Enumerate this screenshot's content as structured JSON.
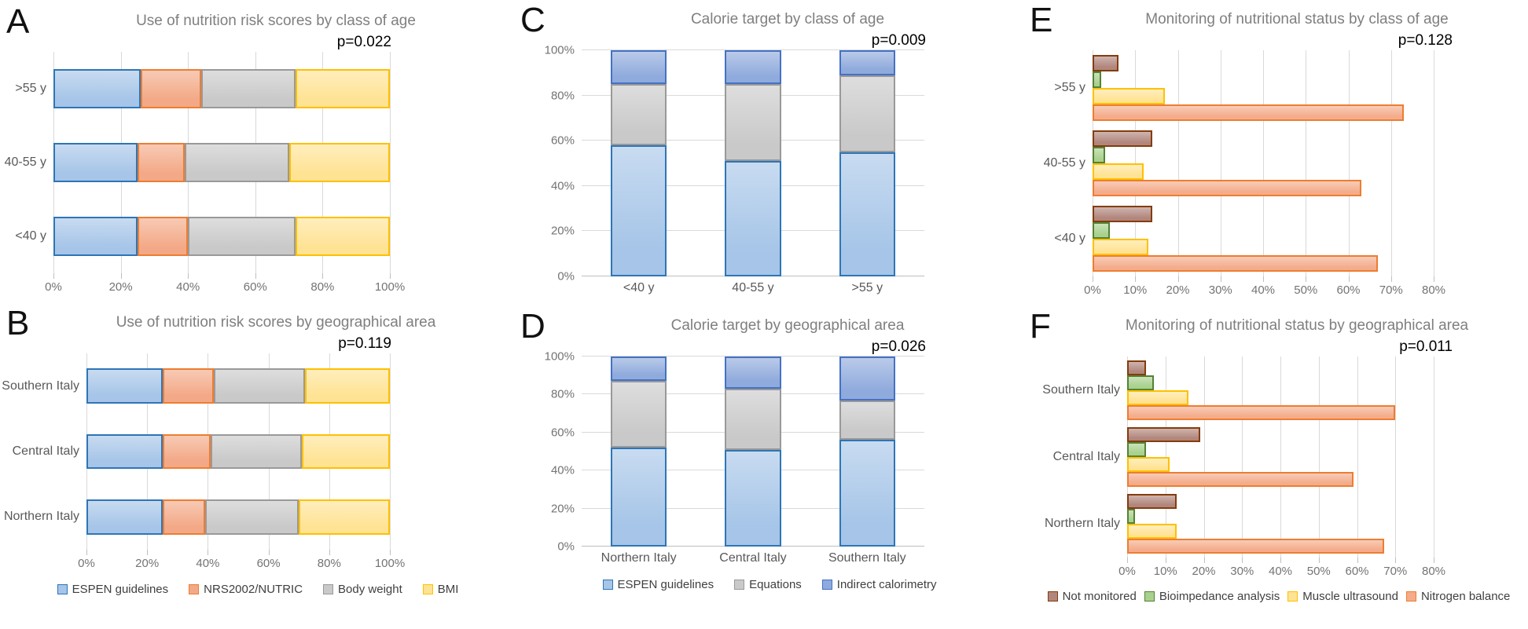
{
  "palette": {
    "espen_blue": {
      "fill": "#A6C5E8",
      "border": "#2E75B6"
    },
    "nrs_orange": {
      "fill": "#F3A987",
      "border": "#ED7D31"
    },
    "gray": {
      "fill": "#C9C9C9",
      "border": "#999999"
    },
    "bmi_yellow": {
      "fill": "#FFE394",
      "border": "#FFC000"
    },
    "calorimetry_blue": {
      "fill": "#8FAADC",
      "border": "#4472C4"
    },
    "brown": {
      "fill": "#B1867C",
      "border": "#843C0C"
    },
    "green": {
      "fill": "#A9D18E",
      "border": "#548235"
    },
    "nitrogen_orange": {
      "fill": "#F4AC8B",
      "border": "#ED7D31"
    },
    "gridline": "#D9D9D9"
  },
  "chart_data": [
    {
      "id": "A",
      "letter": "A",
      "type": "stacked-bar-h",
      "title": "Use of nutrition risk scores by class of age",
      "pvalue": "p=0.022",
      "categories": [
        ">55 y",
        "40-55 y",
        "<40 y"
      ],
      "series": [
        {
          "name": "ESPEN guidelines",
          "color": "espen_blue",
          "values": [
            26,
            25,
            25
          ]
        },
        {
          "name": "NRS2002/NUTRIC",
          "color": "nrs_orange",
          "values": [
            18,
            14,
            15
          ]
        },
        {
          "name": "Body weight",
          "color": "gray",
          "values": [
            28,
            31,
            32
          ]
        },
        {
          "name": "BMI",
          "color": "bmi_yellow",
          "values": [
            28,
            30,
            28
          ]
        }
      ],
      "x_ticks": [
        "0%",
        "20%",
        "40%",
        "60%",
        "80%",
        "100%"
      ],
      "xmax": 100,
      "legend": false
    },
    {
      "id": "B",
      "letter": "B",
      "type": "stacked-bar-h",
      "title": "Use of nutrition risk scores by geographical area",
      "pvalue": "p=0.119",
      "categories": [
        "Southern Italy",
        "Central Italy",
        "Northern Italy"
      ],
      "series": [
        {
          "name": "ESPEN guidelines",
          "color": "espen_blue",
          "values": [
            25,
            25,
            25
          ]
        },
        {
          "name": "NRS2002/NUTRIC",
          "color": "nrs_orange",
          "values": [
            17,
            16,
            14
          ]
        },
        {
          "name": "Body weight",
          "color": "gray",
          "values": [
            30,
            30,
            31
          ]
        },
        {
          "name": "BMI",
          "color": "bmi_yellow",
          "values": [
            28,
            29,
            30
          ]
        }
      ],
      "x_ticks": [
        "0%",
        "20%",
        "40%",
        "60%",
        "80%",
        "100%"
      ],
      "xmax": 100,
      "legend": true
    },
    {
      "id": "C",
      "letter": "C",
      "type": "stacked-col",
      "title": "Calorie target by class of age",
      "pvalue": "p=0.009",
      "categories": [
        "<40 y",
        "40-55 y",
        ">55 y"
      ],
      "series": [
        {
          "name": "ESPEN guidelines",
          "color": "espen_blue",
          "values": [
            58,
            51,
            55
          ]
        },
        {
          "name": "Equations",
          "color": "gray",
          "values": [
            27,
            34,
            34
          ]
        },
        {
          "name": "Indirect calorimetry",
          "color": "calorimetry_blue",
          "values": [
            15,
            15,
            11
          ]
        }
      ],
      "y_ticks": [
        "0%",
        "20%",
        "40%",
        "60%",
        "80%",
        "100%"
      ],
      "ymax": 100,
      "legend": false
    },
    {
      "id": "D",
      "letter": "D",
      "type": "stacked-col",
      "title": "Calorie target by geographical area",
      "pvalue": "p=0.026",
      "categories": [
        "Northern Italy",
        "Central Italy",
        "Southern Italy"
      ],
      "series": [
        {
          "name": "ESPEN guidelines",
          "color": "espen_blue",
          "values": [
            52,
            51,
            56
          ]
        },
        {
          "name": "Equations",
          "color": "gray",
          "values": [
            35,
            32,
            21
          ]
        },
        {
          "name": "Indirect calorimetry",
          "color": "calorimetry_blue",
          "values": [
            13,
            17,
            23
          ]
        }
      ],
      "y_ticks": [
        "0%",
        "20%",
        "40%",
        "60%",
        "80%",
        "100%"
      ],
      "ymax": 100,
      "legend": true
    },
    {
      "id": "E",
      "letter": "E",
      "type": "grouped-bar-h",
      "title": "Monitoring of nutritional status by class of age",
      "pvalue": "p=0.128",
      "categories": [
        ">55 y",
        "40-55 y",
        "<40 y"
      ],
      "series": [
        {
          "name": "Not monitored",
          "color": "brown",
          "values": [
            6,
            14,
            14
          ]
        },
        {
          "name": "Bioimpedance analysis",
          "color": "green",
          "values": [
            2,
            3,
            4
          ]
        },
        {
          "name": "Muscle ultrasound",
          "color": "bmi_yellow",
          "values": [
            17,
            12,
            13
          ]
        },
        {
          "name": "Nitrogen balance",
          "color": "nitrogen_orange",
          "values": [
            73,
            63,
            67
          ]
        }
      ],
      "x_ticks": [
        "0%",
        "10%",
        "20%",
        "30%",
        "40%",
        "50%",
        "60%",
        "70%",
        "80%"
      ],
      "xmax": 80,
      "legend": false
    },
    {
      "id": "F",
      "letter": "F",
      "type": "grouped-bar-h",
      "title": "Monitoring of nutritional status by geographical area",
      "pvalue": "p=0.011",
      "categories": [
        "Southern Italy",
        "Central Italy",
        "Northern Italy"
      ],
      "series": [
        {
          "name": "Not monitored",
          "color": "brown",
          "values": [
            5,
            19,
            13
          ]
        },
        {
          "name": "Bioimpedance analysis",
          "color": "green",
          "values": [
            7,
            5,
            2
          ]
        },
        {
          "name": "Muscle ultrasound",
          "color": "bmi_yellow",
          "values": [
            16,
            11,
            13
          ]
        },
        {
          "name": "Nitrogen balance",
          "color": "nitrogen_orange",
          "values": [
            70,
            59,
            67
          ]
        }
      ],
      "x_ticks": [
        "0%",
        "10%",
        "20%",
        "30%",
        "40%",
        "50%",
        "60%",
        "70%",
        "80%"
      ],
      "xmax": 80,
      "legend": true
    }
  ]
}
